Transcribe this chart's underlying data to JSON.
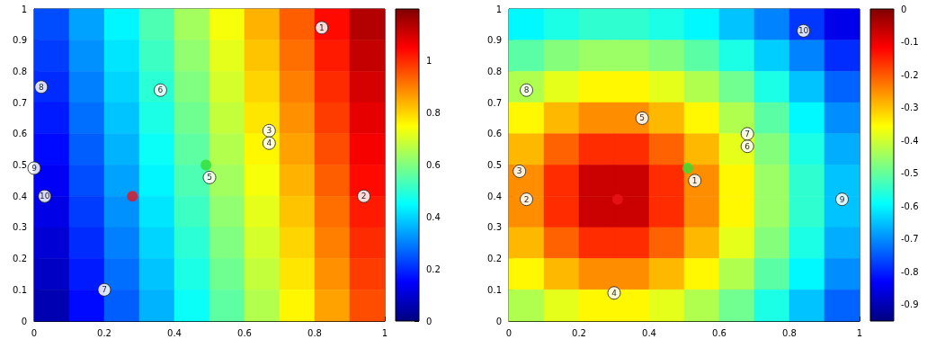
{
  "chart_data": [
    {
      "type": "heatmap",
      "x": [
        0.05,
        0.15,
        0.25,
        0.35,
        0.45,
        0.55,
        0.65,
        0.75,
        0.85,
        0.95
      ],
      "y": [
        0.95,
        0.85,
        0.75,
        0.65,
        0.55,
        0.45,
        0.35,
        0.25,
        0.15,
        0.05
      ],
      "cells": [
        [
          0.24,
          0.34,
          0.44,
          0.54,
          0.64,
          0.74,
          0.84,
          0.94,
          1.04,
          1.14
        ],
        [
          0.22,
          0.32,
          0.42,
          0.52,
          0.62,
          0.72,
          0.82,
          0.92,
          1.02,
          1.12
        ],
        [
          0.2,
          0.3,
          0.4,
          0.5,
          0.6,
          0.7,
          0.8,
          0.9,
          1.0,
          1.1
        ],
        [
          0.18,
          0.28,
          0.38,
          0.48,
          0.58,
          0.68,
          0.78,
          0.88,
          0.98,
          1.08
        ],
        [
          0.16,
          0.26,
          0.36,
          0.46,
          0.56,
          0.66,
          0.76,
          0.86,
          0.96,
          1.06
        ],
        [
          0.14,
          0.24,
          0.34,
          0.44,
          0.54,
          0.64,
          0.74,
          0.84,
          0.94,
          1.04
        ],
        [
          0.12,
          0.22,
          0.32,
          0.42,
          0.52,
          0.62,
          0.72,
          0.82,
          0.92,
          1.02
        ],
        [
          0.1,
          0.2,
          0.3,
          0.4,
          0.5,
          0.6,
          0.7,
          0.8,
          0.9,
          1.0
        ],
        [
          0.08,
          0.18,
          0.28,
          0.38,
          0.48,
          0.58,
          0.68,
          0.78,
          0.88,
          0.98
        ],
        [
          0.06,
          0.16,
          0.26,
          0.36,
          0.46,
          0.56,
          0.66,
          0.76,
          0.86,
          0.96
        ]
      ],
      "xlim": [
        0,
        1
      ],
      "ylim": [
        0,
        1
      ],
      "xticks": [
        0,
        0.2,
        0.4,
        0.6,
        0.8,
        1
      ],
      "yticks": [
        0,
        0.1,
        0.2,
        0.3,
        0.4,
        0.5,
        0.6,
        0.7,
        0.8,
        0.9,
        1
      ],
      "clim": [
        0,
        1.2
      ],
      "cticks": [
        0,
        0.2,
        0.4,
        0.6,
        0.8,
        1
      ],
      "annotations": [
        {
          "text": "1",
          "x": 0.82,
          "y": 0.94
        },
        {
          "text": "2",
          "x": 0.94,
          "y": 0.4
        },
        {
          "text": "3",
          "x": 0.67,
          "y": 0.61
        },
        {
          "text": "4",
          "x": 0.67,
          "y": 0.57
        },
        {
          "text": "5",
          "x": 0.5,
          "y": 0.46
        },
        {
          "text": "6",
          "x": 0.36,
          "y": 0.74
        },
        {
          "text": "7",
          "x": 0.2,
          "y": 0.1
        },
        {
          "text": "8",
          "x": 0.02,
          "y": 0.75
        },
        {
          "text": "9",
          "x": 0.0,
          "y": 0.49
        },
        {
          "text": "10",
          "x": 0.03,
          "y": 0.4
        }
      ],
      "series": [
        {
          "type": "scatter",
          "color": "#e8141a",
          "x": [
            0.28
          ],
          "values": [
            0.4
          ]
        },
        {
          "type": "scatter",
          "color": "#33dd33",
          "x": [
            0.49
          ],
          "values": [
            0.5
          ]
        }
      ]
    },
    {
      "type": "heatmap",
      "x": [
        0.05,
        0.15,
        0.25,
        0.35,
        0.45,
        0.55,
        0.65,
        0.75,
        0.85,
        0.95
      ],
      "y": [
        0.95,
        0.85,
        0.75,
        0.65,
        0.55,
        0.45,
        0.35,
        0.25,
        0.15,
        0.05
      ],
      "cells": [
        [
          -0.6,
          -0.57,
          -0.55,
          -0.55,
          -0.57,
          -0.6,
          -0.65,
          -0.71,
          -0.78,
          -0.85
        ],
        [
          -0.51,
          -0.47,
          -0.45,
          -0.45,
          -0.47,
          -0.51,
          -0.57,
          -0.64,
          -0.71,
          -0.79
        ],
        [
          -0.43,
          -0.38,
          -0.35,
          -0.35,
          -0.38,
          -0.43,
          -0.49,
          -0.57,
          -0.65,
          -0.74
        ],
        [
          -0.35,
          -0.29,
          -0.25,
          -0.25,
          -0.29,
          -0.35,
          -0.43,
          -0.51,
          -0.6,
          -0.7
        ],
        [
          -0.29,
          -0.21,
          -0.16,
          -0.16,
          -0.21,
          -0.29,
          -0.38,
          -0.47,
          -0.57,
          -0.67
        ],
        [
          -0.25,
          -0.16,
          -0.07,
          -0.07,
          -0.16,
          -0.25,
          -0.35,
          -0.45,
          -0.55,
          -0.65
        ],
        [
          -0.25,
          -0.16,
          -0.07,
          -0.07,
          -0.16,
          -0.25,
          -0.35,
          -0.45,
          -0.55,
          -0.65
        ],
        [
          -0.29,
          -0.21,
          -0.16,
          -0.16,
          -0.21,
          -0.29,
          -0.38,
          -0.47,
          -0.57,
          -0.67
        ],
        [
          -0.35,
          -0.29,
          -0.25,
          -0.25,
          -0.29,
          -0.35,
          -0.43,
          -0.51,
          -0.6,
          -0.7
        ],
        [
          -0.43,
          -0.38,
          -0.35,
          -0.35,
          -0.38,
          -0.43,
          -0.49,
          -0.57,
          -0.65,
          -0.74
        ]
      ],
      "xlim": [
        0,
        1
      ],
      "ylim": [
        0,
        1
      ],
      "xticks": [
        0,
        0.2,
        0.4,
        0.6,
        0.8,
        1
      ],
      "yticks": [
        0,
        0.1,
        0.2,
        0.3,
        0.4,
        0.5,
        0.6,
        0.7,
        0.8,
        0.9,
        1
      ],
      "clim": [
        -0.95,
        0
      ],
      "cticks": [
        -0.9,
        -0.8,
        -0.7,
        -0.6,
        -0.5,
        -0.4,
        -0.3,
        -0.2,
        -0.1,
        0
      ],
      "annotations": [
        {
          "text": "1",
          "x": 0.53,
          "y": 0.45
        },
        {
          "text": "2",
          "x": 0.05,
          "y": 0.39
        },
        {
          "text": "3",
          "x": 0.03,
          "y": 0.48
        },
        {
          "text": "4",
          "x": 0.3,
          "y": 0.09
        },
        {
          "text": "5",
          "x": 0.38,
          "y": 0.65
        },
        {
          "text": "6",
          "x": 0.68,
          "y": 0.56
        },
        {
          "text": "7",
          "x": 0.68,
          "y": 0.6
        },
        {
          "text": "8",
          "x": 0.05,
          "y": 0.74
        },
        {
          "text": "9",
          "x": 0.95,
          "y": 0.39
        },
        {
          "text": "10",
          "x": 0.84,
          "y": 0.93
        }
      ],
      "series": [
        {
          "type": "scatter",
          "color": "#e8141a",
          "x": [
            0.31
          ],
          "values": [
            0.39
          ]
        },
        {
          "type": "scatter",
          "color": "#33dd33",
          "x": [
            0.51
          ],
          "values": [
            0.49
          ]
        }
      ]
    }
  ]
}
